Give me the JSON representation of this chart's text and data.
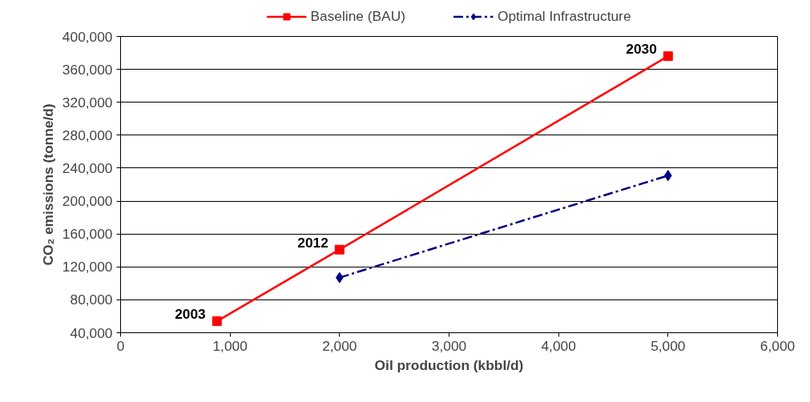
{
  "chart_data": {
    "type": "line",
    "xlabel": "Oil production (kbbl/d)",
    "ylabel": "CO₂ emissions (tonne/d)",
    "xlim": [
      0,
      6000
    ],
    "ylim": [
      40000,
      400000
    ],
    "xticks": [
      0,
      {
        "value": 1000,
        "label": "1,000"
      },
      {
        "value": 2000,
        "label": "2,000"
      },
      {
        "value": 3000,
        "label": "3,000"
      },
      {
        "value": 4000,
        "label": "4,000"
      },
      {
        "value": 5000,
        "label": "5,000"
      },
      {
        "value": 6000,
        "label": "6,000"
      }
    ],
    "yticks": [
      {
        "value": 40000,
        "label": "40,000"
      },
      {
        "value": 80000,
        "label": "80,000"
      },
      {
        "value": 120000,
        "label": "120,000"
      },
      {
        "value": 160000,
        "label": "160,000"
      },
      {
        "value": 200000,
        "label": "200,000"
      },
      {
        "value": 240000,
        "label": "240,000"
      },
      {
        "value": 280000,
        "label": "280,000"
      },
      {
        "value": 320000,
        "label": "320,000"
      },
      {
        "value": 360000,
        "label": "360,000"
      },
      {
        "value": 400000,
        "label": "400,000"
      }
    ],
    "grid": "y",
    "legend": "top",
    "series": [
      {
        "name": "Baseline (BAU)",
        "color": "#ff0000",
        "x": [
          880,
          2000,
          5000
        ],
        "values": [
          54000,
          141000,
          376000
        ],
        "marker": "square",
        "line_style": "solid"
      },
      {
        "name": "Optimal Infrastructure",
        "color": "#000080",
        "x": [
          2000,
          5000
        ],
        "values": [
          107000,
          231000
        ],
        "marker": "diamond",
        "line_style": "dashdot"
      }
    ],
    "annotations": [
      {
        "text": "2003",
        "x": 880,
        "y": 54000
      },
      {
        "text": "2012",
        "x": 2000,
        "y": 141000
      },
      {
        "text": "2030",
        "x": 5000,
        "y": 376000
      }
    ]
  }
}
